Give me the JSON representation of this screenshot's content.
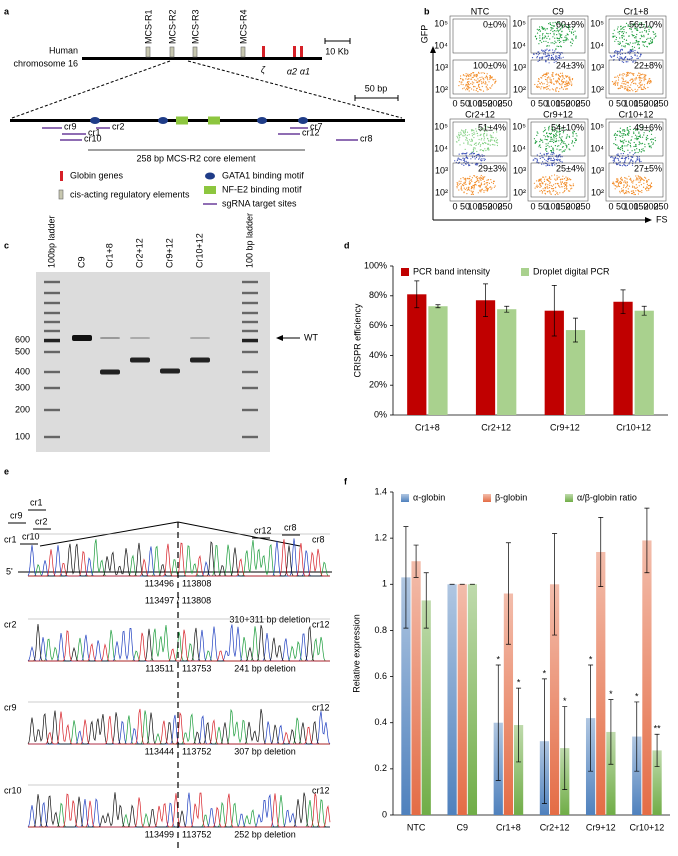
{
  "panel_labels": [
    "a",
    "b",
    "c",
    "d",
    "e",
    "f"
  ],
  "panel_a": {
    "chromosome_label": [
      "Human",
      "chromosome 16"
    ],
    "regions": [
      "MCS-R1",
      "MCS-R2",
      "MCS-R3",
      "MCS-R4"
    ],
    "genes": [
      "ζ",
      "α2",
      "α1"
    ],
    "scale_large": "10 Kb",
    "scale_small": "50 bp",
    "sgrnas": [
      "cr9",
      "cr1",
      "cr2",
      "cr10",
      "cr7",
      "cr12",
      "cr8"
    ],
    "core_label": "258 bp MCS-R2 core element",
    "legend": [
      "Globin genes",
      "cis-acting regulatory elements",
      "GATA1 binding motif",
      "NF-E2 binding motif",
      "sgRNA target sites"
    ]
  },
  "panel_b": {
    "y_label": "GFP",
    "x_label": "FS",
    "y_ticks": [
      "10⁵",
      "10⁴",
      "10³",
      "10²"
    ],
    "x_ticks": [
      0,
      50,
      100,
      150,
      200,
      250
    ],
    "plots": [
      {
        "name": "NTC",
        "upper": "0±0%",
        "lower": "100±0%"
      },
      {
        "name": "C9",
        "upper": "60±9%",
        "lower": "24±3%"
      },
      {
        "name": "Cr1+8",
        "upper": "56±10%",
        "lower": "22±8%"
      },
      {
        "name": "Cr2+12",
        "upper": "51±4%",
        "lower": "29±3%"
      },
      {
        "name": "Cr9+12",
        "upper": "54±10%",
        "lower": "25±4%"
      },
      {
        "name": "Cr10+12",
        "upper": "49±6%",
        "lower": "27±5%"
      }
    ]
  },
  "panel_c": {
    "lanes": [
      "100bp ladder",
      "C9",
      "Cr1+8",
      "Cr2+12",
      "Cr9+12",
      "Cr10+12",
      "100 bp ladder"
    ],
    "sizes": [
      600,
      500,
      400,
      300,
      200,
      100
    ],
    "wt_label": "WT"
  },
  "panel_e": {
    "top_labels": [
      "cr1",
      "cr9",
      "cr2",
      "cr10",
      "cr12",
      "cr8"
    ],
    "five_prime": "5'",
    "traces": [
      {
        "left": "cr1",
        "right": "cr8",
        "pos_left": 113496,
        "pos_right": 113808,
        "deletion": "310+311 bp deletion",
        "alt": "113497 / 113808"
      },
      {
        "left": "cr2",
        "right": "cr12",
        "pos_left": 113511,
        "pos_right": 113753,
        "deletion": "241 bp deletion"
      },
      {
        "left": "cr9",
        "right": "cr12",
        "pos_left": 113444,
        "pos_right": 113752,
        "deletion": "307 bp deletion"
      },
      {
        "left": "cr10",
        "right": "cr12",
        "pos_left": 113499,
        "pos_right": 113752,
        "deletion": "252 bp deletion"
      }
    ]
  },
  "chart_data": [
    {
      "type": "bar",
      "ylabel": "CRISPR efficiency",
      "categories": [
        "Cr1+8",
        "Cr2+12",
        "Cr9+12",
        "Cr10+12"
      ],
      "series": [
        {
          "name": "PCR band intensity",
          "color": "#c00000",
          "values": [
            81,
            77,
            70,
            76
          ],
          "errors": [
            9,
            11,
            17,
            8
          ]
        },
        {
          "name": "Droplet digital PCR",
          "color": "#a9d18e",
          "values": [
            73,
            71,
            57,
            70
          ],
          "errors": [
            1,
            2,
            8,
            3
          ]
        }
      ],
      "ylim": [
        0,
        100
      ],
      "yticks": [
        {
          "value": 0,
          "label": "0%"
        },
        {
          "value": 20,
          "label": "20%"
        },
        {
          "value": 40,
          "label": "40%"
        },
        {
          "value": 60,
          "label": "60%"
        },
        {
          "value": 80,
          "label": "80%"
        },
        {
          "value": 100,
          "label": "100%"
        }
      ],
      "grid": false,
      "legend": "top",
      "bar_gradient": false
    },
    {
      "type": "bar",
      "ylabel": "Relative expression",
      "categories": [
        "NTC",
        "C9",
        "Cr1+8",
        "Cr2+12",
        "Cr9+12",
        "Cr10+12"
      ],
      "series": [
        {
          "name": "α-globin",
          "color": "#4f81bd",
          "values": [
            1.03,
            1,
            0.4,
            0.32,
            0.42,
            0.34
          ],
          "errors": [
            0.22,
            0,
            0.25,
            0.27,
            0.23,
            0.15
          ],
          "significance": [
            null,
            null,
            "*",
            "*",
            "*",
            "*"
          ]
        },
        {
          "name": "β-globin",
          "color": "#e46c45",
          "values": [
            1.1,
            1,
            0.96,
            1,
            1.14,
            1.19
          ],
          "errors": [
            0.07,
            0,
            0.22,
            0.22,
            0.15,
            0.14
          ]
        },
        {
          "name": "α/β-globin ratio",
          "color": "#70ad47",
          "values": [
            0.93,
            1,
            0.39,
            0.29,
            0.36,
            0.28
          ],
          "errors": [
            0.12,
            0,
            0.16,
            0.18,
            0.14,
            0.07
          ],
          "significance": [
            null,
            null,
            "*",
            "*",
            "*",
            "**"
          ]
        }
      ],
      "ylim": [
        0,
        1.4
      ],
      "yticks": [
        0,
        0.2,
        0.4,
        0.6,
        0.8,
        1,
        1.2,
        1.4
      ],
      "grid": false,
      "legend": "top",
      "bar_gradient": true
    }
  ]
}
